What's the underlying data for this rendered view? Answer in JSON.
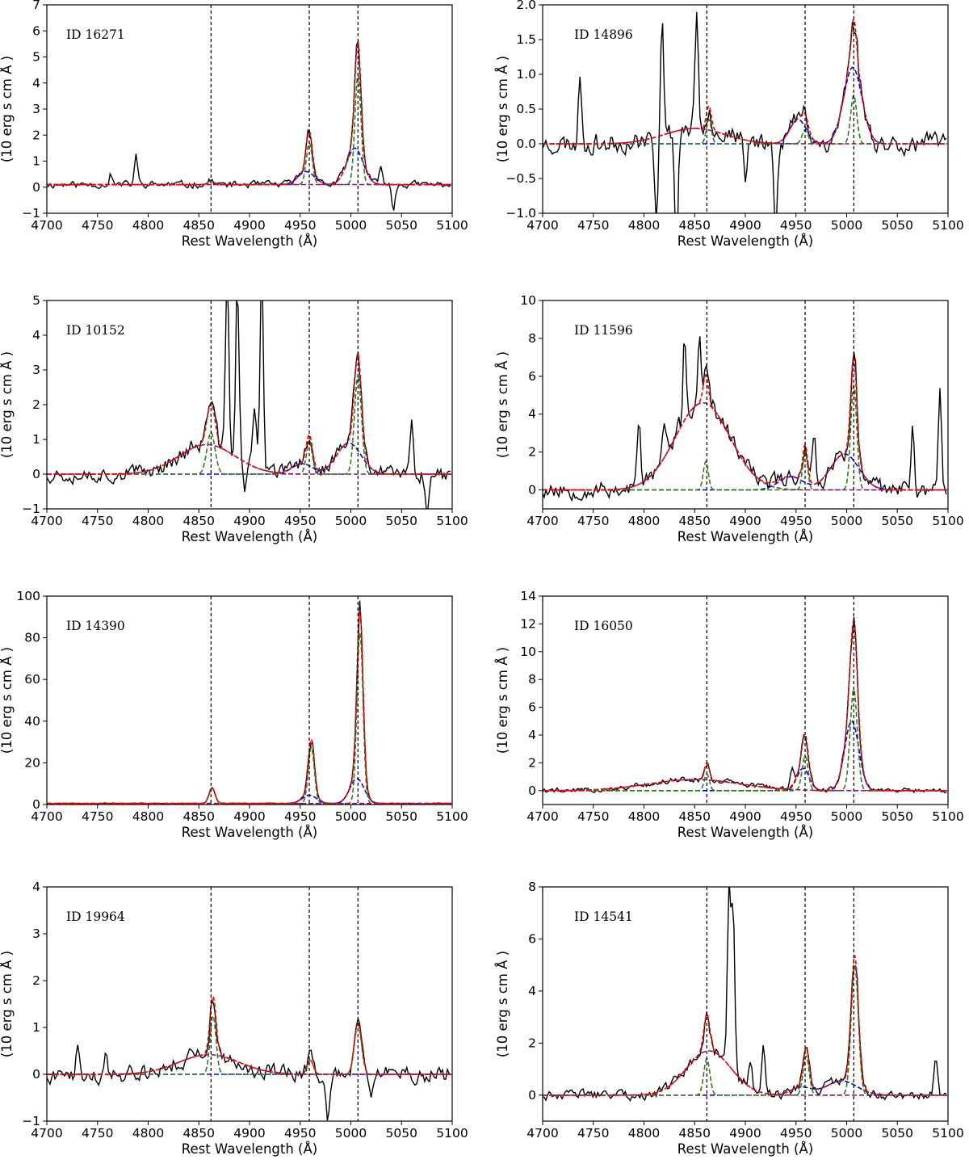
{
  "figure": {
    "colors": {
      "observed": "#000000",
      "total_fit": "#ff0000",
      "broad_fit": "#8b1a6b",
      "narrow_fit": "#2e7d1f",
      "outflow_fit": "#0000ff",
      "marker_line": "#000000"
    }
  },
  "chart_data": [
    {
      "type": "line",
      "id_label": "ID 16271",
      "xlabel": "Rest Wavelength (Å)",
      "ylabel_text": "(10  erg s  cm  Å  )",
      "xlim": [
        4700,
        5100
      ],
      "ylim": [
        -1,
        7
      ],
      "xticks": [
        4700,
        4750,
        4800,
        4850,
        4900,
        4950,
        5000,
        5050,
        5100
      ],
      "yticks": [
        -1,
        0,
        1,
        2,
        3,
        4,
        5,
        6,
        7
      ],
      "marker_lines": [
        4862,
        4959,
        5007
      ],
      "fit": {
        "narrow": [
          [
            4862,
            0.15,
            3
          ],
          [
            4959,
            1.6,
            3
          ],
          [
            5007,
            4.2,
            3
          ]
        ],
        "outflow": [
          [
            4956,
            0.5,
            8
          ],
          [
            5004,
            1.4,
            8
          ]
        ],
        "broad": [],
        "continuum": 0.1
      },
      "series": [
        {
          "key": "observed",
          "noise": 0.2,
          "seed": 11,
          "spikes": [
            [
              4788,
              1.2
            ],
            [
              4763,
              0.5
            ],
            [
              5030,
              0.8
            ],
            [
              5042,
              -0.9
            ]
          ]
        }
      ]
    },
    {
      "type": "line",
      "id_label": "ID 14896",
      "xlabel": "Rest Wavelength (Å)",
      "ylabel_text": "(10  erg s  cm  Å  )",
      "xlim": [
        4700,
        5100
      ],
      "ylim": [
        -1.0,
        2.0
      ],
      "xticks": [
        4700,
        4750,
        4800,
        4850,
        4900,
        4950,
        5000,
        5050,
        5100
      ],
      "yticks": [
        -1.0,
        -0.5,
        0.0,
        0.5,
        1.0,
        1.5,
        2.0
      ],
      "marker_lines": [
        4862,
        4959,
        5007
      ],
      "fit": {
        "narrow": [
          [
            4864,
            0.35,
            2.5
          ],
          [
            4959,
            0.2,
            3
          ],
          [
            5007,
            0.7,
            3
          ]
        ],
        "outflow": [
          [
            4952,
            0.35,
            8
          ],
          [
            5006,
            1.1,
            9
          ]
        ],
        "broad": [
          [
            4850,
            0.22,
            30
          ]
        ],
        "continuum": 0.0
      },
      "series": [
        {
          "key": "observed",
          "noise": 0.22,
          "seed": 23,
          "spikes": [
            [
              4737,
              1.0
            ],
            [
              4818,
              1.9
            ],
            [
              4852,
              2.0
            ],
            [
              4832,
              -1.6
            ],
            [
              4812,
              -1.2
            ],
            [
              4900,
              -0.7
            ],
            [
              4930,
              -1.1
            ]
          ]
        }
      ]
    },
    {
      "type": "line",
      "id_label": "ID 10152",
      "xlabel": "Rest Wavelength (Å)",
      "ylabel_text": "(10  erg s  cm  Å  )",
      "xlim": [
        4700,
        5100
      ],
      "ylim": [
        -1,
        5
      ],
      "xticks": [
        4700,
        4750,
        4800,
        4850,
        4900,
        4950,
        5000,
        5050,
        5100
      ],
      "yticks": [
        -1,
        0,
        1,
        2,
        3,
        4,
        5
      ],
      "marker_lines": [
        4862,
        4959,
        5007
      ],
      "fit": {
        "narrow": [
          [
            4862,
            1.2,
            4
          ],
          [
            4959,
            0.9,
            3
          ],
          [
            5007,
            2.8,
            3.5
          ]
        ],
        "outflow": [
          [
            4952,
            0.3,
            10
          ],
          [
            4998,
            0.9,
            12
          ]
        ],
        "broad": [
          [
            4858,
            0.85,
            28
          ]
        ],
        "continuum": 0.0
      },
      "series": [
        {
          "key": "observed",
          "noise": 0.35,
          "seed": 37,
          "spikes": [
            [
              4878,
              6.0
            ],
            [
              4888,
              5.5
            ],
            [
              4912,
              6.0
            ],
            [
              4895,
              -0.5
            ],
            [
              4905,
              2.0
            ],
            [
              5060,
              1.4
            ],
            [
              5075,
              -1.0
            ]
          ]
        }
      ]
    },
    {
      "type": "line",
      "id_label": "ID 11596",
      "xlabel": "Rest Wavelength (Å)",
      "ylabel_text": "(10  erg s  cm  Å  )",
      "xlim": [
        4700,
        5100
      ],
      "ylim": [
        -1,
        10
      ],
      "xticks": [
        4700,
        4750,
        4800,
        4850,
        4900,
        4950,
        5000,
        5050,
        5100
      ],
      "yticks": [
        0,
        2,
        4,
        6,
        8,
        10
      ],
      "marker_lines": [
        4862,
        4959,
        5007
      ],
      "fit": {
        "narrow": [
          [
            4861,
            1.5,
            2.5
          ],
          [
            4959,
            2.0,
            2.5
          ],
          [
            5007,
            5.5,
            3
          ]
        ],
        "outflow": [
          [
            4945,
            0.7,
            12
          ],
          [
            4998,
            1.9,
            14
          ]
        ],
        "broad": [
          [
            4858,
            4.6,
            27
          ]
        ],
        "continuum": 0.0
      },
      "series": [
        {
          "key": "observed",
          "noise": 0.7,
          "seed": 53,
          "spikes": [
            [
              4795,
              3.5
            ],
            [
              4820,
              3.6
            ],
            [
              4840,
              8.1
            ],
            [
              4855,
              7.7
            ],
            [
              4968,
              3.0
            ],
            [
              5065,
              3.5
            ],
            [
              5092,
              5.3
            ]
          ]
        }
      ]
    },
    {
      "type": "line",
      "id_label": "ID 14390",
      "xlabel": "Rest Wavelength (Å)",
      "ylabel_text": "(10  erg s  cm  Å  )",
      "xlim": [
        4700,
        5100
      ],
      "ylim": [
        0,
        100
      ],
      "xticks": [
        4700,
        4750,
        4800,
        4850,
        4900,
        4950,
        5000,
        5050,
        5100
      ],
      "yticks": [
        0,
        20,
        40,
        60,
        80,
        100
      ],
      "marker_lines": [
        4862,
        4959,
        5007
      ],
      "fit": {
        "narrow": [
          [
            4863,
            7.5,
            3
          ],
          [
            4961,
            27,
            3
          ],
          [
            5009,
            82,
            3
          ]
        ],
        "outflow": [
          [
            4959,
            4.0,
            7
          ],
          [
            5006,
            12,
            7
          ]
        ],
        "broad": [],
        "continuum": 0.5
      },
      "series": [
        {
          "key": "observed",
          "noise": 0.4,
          "seed": 67,
          "spikes": []
        }
      ]
    },
    {
      "type": "line",
      "id_label": "ID 16050",
      "xlabel": "Rest Wavelength (Å)",
      "ylabel_text": "(10  erg s  cm  Å  )",
      "xlim": [
        4700,
        5100
      ],
      "ylim": [
        -1,
        14
      ],
      "xticks": [
        4700,
        4750,
        4800,
        4850,
        4900,
        4950,
        5000,
        5050,
        5100
      ],
      "yticks": [
        0,
        2,
        4,
        6,
        8,
        10,
        12,
        14
      ],
      "marker_lines": [
        4862,
        4959,
        5007
      ],
      "fit": {
        "narrow": [
          [
            4862,
            1.2,
            2.5
          ],
          [
            4959,
            2.5,
            3
          ],
          [
            5007,
            7.3,
            3.5
          ]
        ],
        "outflow": [
          [
            4957,
            1.6,
            6
          ],
          [
            5005,
            5.0,
            7
          ]
        ],
        "broad": [
          [
            4850,
            0.8,
            45
          ]
        ],
        "continuum": 0.0
      },
      "series": [
        {
          "key": "observed",
          "noise": 0.3,
          "seed": 79,
          "spikes": [
            [
              4946,
              1.8
            ]
          ]
        }
      ]
    },
    {
      "type": "line",
      "id_label": "ID 19964",
      "xlabel": "Rest Wavelength (Å)",
      "ylabel_text": "(10  erg s  cm  Å  )",
      "xlim": [
        4700,
        5100
      ],
      "ylim": [
        -1,
        4
      ],
      "xticks": [
        4700,
        4750,
        4800,
        4850,
        4900,
        4950,
        5000,
        5050,
        5100
      ],
      "yticks": [
        -1,
        0,
        1,
        2,
        3,
        4
      ],
      "marker_lines": [
        4862,
        4959,
        5007
      ],
      "fit": {
        "narrow": [
          [
            4864,
            1.25,
            3
          ],
          [
            4960,
            0.3,
            3
          ],
          [
            5007,
            1.1,
            3.5
          ]
        ],
        "outflow": [],
        "broad": [
          [
            4860,
            0.42,
            30
          ]
        ],
        "continuum": 0.0
      },
      "series": [
        {
          "key": "observed",
          "noise": 0.28,
          "seed": 91,
          "spikes": [
            [
              4730,
              0.6
            ],
            [
              4758,
              0.55
            ],
            [
              4977,
              -0.9
            ],
            [
              5020,
              -0.6
            ]
          ]
        }
      ]
    },
    {
      "type": "line",
      "id_label": "ID 14541",
      "xlabel": "Rest Wavelength (Å)",
      "ylabel_text": "(10  erg s  cm  Å  )",
      "xlim": [
        4700,
        5100
      ],
      "ylim": [
        -1,
        8
      ],
      "xticks": [
        4700,
        4750,
        4800,
        4850,
        4900,
        4950,
        5000,
        5050,
        5100
      ],
      "yticks": [
        0,
        2,
        4,
        6,
        8
      ],
      "marker_lines": [
        4862,
        4959,
        5007
      ],
      "fit": {
        "narrow": [
          [
            4862,
            1.4,
            3
          ],
          [
            4960,
            1.5,
            3
          ],
          [
            5008,
            5.0,
            3.5
          ]
        ],
        "outflow": [
          [
            4955,
            0.3,
            10
          ],
          [
            4995,
            0.55,
            15
          ]
        ],
        "broad": [
          [
            4864,
            1.7,
            22
          ]
        ],
        "continuum": 0.0
      },
      "series": [
        {
          "key": "observed",
          "noise": 0.3,
          "seed": 103,
          "spikes": [
            [
              4884,
              8.0
            ],
            [
              4888,
              7.0
            ],
            [
              4918,
              2.1
            ],
            [
              4905,
              1.3
            ],
            [
              5088,
              1.5
            ]
          ]
        }
      ]
    }
  ]
}
